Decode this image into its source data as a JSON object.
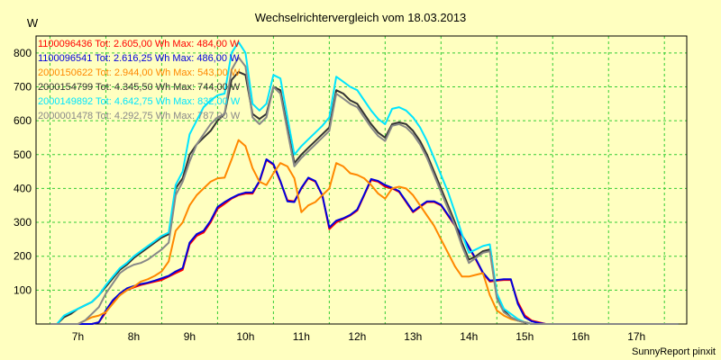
{
  "chart_data": {
    "type": "line",
    "title": "Wechselrichtervergleich vom 18.03.2013",
    "ylabel": "W",
    "xlabel": "",
    "footer": "SunnyReport pinxit",
    "xlim": [
      6.25,
      17.9
    ],
    "ylim": [
      0,
      850
    ],
    "yticks": [
      100,
      200,
      300,
      400,
      500,
      600,
      700,
      800
    ],
    "xticks": [
      7,
      8,
      9,
      10,
      11,
      12,
      13,
      14,
      15,
      16,
      17
    ],
    "xtick_labels": [
      "7h",
      "8h",
      "9h",
      "10h",
      "11h",
      "12h",
      "13h",
      "14h",
      "15h",
      "16h",
      "17h"
    ],
    "grid": true,
    "legend_position": "top-left",
    "x": [
      6.5,
      6.625,
      6.75,
      6.875,
      7.0,
      7.125,
      7.25,
      7.375,
      7.5,
      7.625,
      7.75,
      7.875,
      8.0,
      8.125,
      8.25,
      8.375,
      8.5,
      8.625,
      8.75,
      8.875,
      9.0,
      9.125,
      9.25,
      9.375,
      9.5,
      9.625,
      9.75,
      9.875,
      10.0,
      10.125,
      10.25,
      10.375,
      10.5,
      10.625,
      10.75,
      10.875,
      11.0,
      11.125,
      11.25,
      11.375,
      11.5,
      11.625,
      11.75,
      11.875,
      12.0,
      12.125,
      12.25,
      12.375,
      12.5,
      12.625,
      12.75,
      12.875,
      13.0,
      13.125,
      13.25,
      13.375,
      13.5,
      13.625,
      13.75,
      13.875,
      14.0,
      14.125,
      14.25,
      14.375,
      14.5,
      14.625,
      14.75,
      14.875,
      15.0,
      15.125,
      15.25,
      15.375,
      15.5,
      15.625,
      15.75,
      15.875,
      16.0,
      16.125,
      16.25,
      16.375,
      16.5,
      16.625,
      16.75,
      16.875,
      17.0,
      17.125,
      17.25,
      17.375,
      17.5,
      17.625,
      17.75
    ],
    "series": [
      {
        "name": "1100096436",
        "legend": "1100096436 Tot: 2.605,00 Wh Max: 484,00 W",
        "color": "#ff0000",
        "values": [
          0,
          0,
          0,
          0,
          0,
          0,
          0,
          5,
          35,
          65,
          85,
          100,
          108,
          115,
          120,
          125,
          130,
          140,
          150,
          160,
          235,
          260,
          270,
          300,
          340,
          355,
          370,
          380,
          385,
          385,
          420,
          484,
          470,
          420,
          365,
          362,
          400,
          430,
          420,
          380,
          280,
          300,
          310,
          320,
          335,
          380,
          425,
          420,
          405,
          400,
          390,
          360,
          330,
          345,
          360,
          360,
          350,
          320,
          290,
          260,
          225,
          190,
          150,
          125,
          128,
          130,
          130,
          65,
          25,
          10,
          5,
          0,
          0,
          0,
          0,
          0,
          0,
          0,
          0,
          0,
          0,
          0,
          0,
          0,
          0,
          0,
          0,
          0,
          0,
          0,
          0
        ]
      },
      {
        "name": "1100096541",
        "legend": "1100096541 Tot: 2.616,25 Wh Max: 486,00 W",
        "color": "#0000dd",
        "values": [
          0,
          0,
          0,
          0,
          0,
          0,
          0,
          5,
          40,
          70,
          90,
          105,
          112,
          118,
          122,
          128,
          135,
          142,
          155,
          165,
          240,
          265,
          275,
          305,
          345,
          360,
          372,
          382,
          388,
          388,
          422,
          486,
          472,
          422,
          362,
          360,
          402,
          432,
          422,
          380,
          285,
          305,
          312,
          322,
          338,
          382,
          428,
          422,
          410,
          402,
          392,
          362,
          332,
          348,
          362,
          362,
          352,
          322,
          292,
          262,
          228,
          192,
          152,
          128,
          130,
          132,
          132,
          60,
          20,
          8,
          3,
          0,
          0,
          0,
          0,
          0,
          0,
          0,
          0,
          0,
          0,
          0,
          0,
          0,
          0,
          0,
          0,
          0,
          0,
          0,
          0
        ]
      },
      {
        "name": "2000150622",
        "legend": "2000150622 Tot: 2.944,00 Wh Max: 543,00 W",
        "color": "#ff8800",
        "values": [
          0,
          0,
          0,
          0,
          0,
          10,
          20,
          25,
          35,
          60,
          85,
          100,
          110,
          125,
          132,
          142,
          155,
          185,
          275,
          300,
          350,
          380,
          400,
          420,
          430,
          432,
          485,
          543,
          525,
          460,
          420,
          410,
          445,
          475,
          465,
          430,
          330,
          350,
          360,
          380,
          400,
          475,
          465,
          445,
          440,
          430,
          410,
          385,
          370,
          400,
          405,
          400,
          380,
          350,
          320,
          290,
          250,
          210,
          170,
          140,
          140,
          145,
          150,
          85,
          40,
          25,
          15,
          10,
          5,
          0,
          0,
          0,
          0,
          0,
          0,
          0,
          0,
          0,
          0,
          0,
          0,
          0,
          0,
          0,
          0,
          0,
          0,
          0,
          0,
          0,
          0
        ]
      },
      {
        "name": "2000154799",
        "legend": "2000154799 Tot: 4.345,50 Wh Max: 744,00 W",
        "color": "#333333",
        "values": [
          0,
          0,
          20,
          30,
          45,
          55,
          65,
          85,
          110,
          135,
          160,
          175,
          195,
          210,
          225,
          240,
          255,
          265,
          400,
          430,
          500,
          530,
          550,
          570,
          600,
          620,
          720,
          744,
          735,
          620,
          605,
          620,
          700,
          690,
          580,
          475,
          500,
          520,
          540,
          560,
          580,
          690,
          680,
          660,
          650,
          620,
          590,
          565,
          550,
          590,
          595,
          590,
          570,
          540,
          500,
          450,
          400,
          350,
          300,
          240,
          190,
          200,
          215,
          220,
          80,
          40,
          20,
          10,
          5,
          0,
          0,
          0,
          0,
          0,
          0,
          0,
          0,
          0,
          0,
          0,
          0,
          0,
          0,
          0,
          0,
          0,
          0,
          0,
          0,
          0,
          0
        ]
      },
      {
        "name": "2000149892",
        "legend": "2000149892 Tot: 4.642,75 Wh Max: 832,00 W",
        "color": "#00e5ff",
        "values": [
          0,
          0,
          25,
          35,
          45,
          55,
          65,
          85,
          115,
          140,
          165,
          180,
          200,
          215,
          230,
          245,
          260,
          270,
          410,
          450,
          560,
          600,
          640,
          660,
          675,
          680,
          800,
          832,
          800,
          650,
          630,
          650,
          735,
          725,
          610,
          500,
          525,
          545,
          565,
          585,
          610,
          730,
          715,
          700,
          690,
          660,
          630,
          605,
          590,
          635,
          640,
          630,
          610,
          580,
          540,
          490,
          440,
          390,
          330,
          265,
          210,
          220,
          230,
          235,
          90,
          45,
          30,
          15,
          5,
          0,
          0,
          0,
          0,
          0,
          0,
          0,
          0,
          0,
          0,
          0,
          0,
          0,
          0,
          0,
          0,
          0,
          0,
          0,
          0,
          0,
          0
        ]
      },
      {
        "name": "2000001478",
        "legend": "2000001478 Tot: 4.292,75 Wh Max: 787,00 W",
        "color": "#888888",
        "values": [
          0,
          0,
          0,
          0,
          0,
          10,
          30,
          50,
          90,
          120,
          150,
          165,
          175,
          180,
          190,
          205,
          220,
          240,
          380,
          420,
          480,
          530,
          560,
          590,
          610,
          620,
          750,
          787,
          760,
          610,
          590,
          610,
          700,
          680,
          570,
          465,
          490,
          510,
          530,
          550,
          570,
          680,
          665,
          650,
          640,
          610,
          580,
          555,
          540,
          585,
          590,
          580,
          560,
          530,
          490,
          440,
          390,
          340,
          290,
          230,
          180,
          195,
          210,
          215,
          75,
          35,
          20,
          10,
          5,
          0,
          0,
          0,
          0,
          0,
          0,
          0,
          0,
          0,
          0,
          0,
          0,
          0,
          0,
          0,
          0,
          0,
          0,
          0,
          0,
          0,
          0
        ]
      }
    ]
  }
}
